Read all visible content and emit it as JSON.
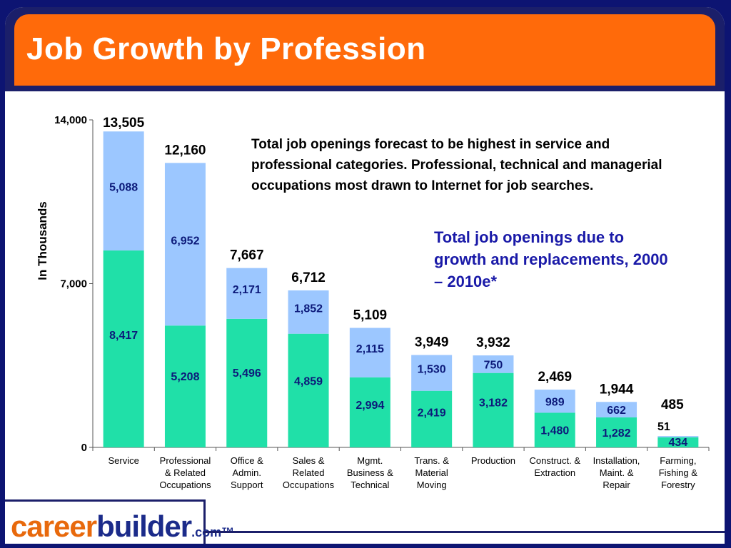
{
  "title": "Job Growth by Profession",
  "caption": "Total job openings forecast to be highest in service and professional categories. Professional, technical and managerial occupations most drawn to Internet for job searches.",
  "subcaption": "Total job openings due to growth and replacements, 2000 – 2010e*",
  "logo": {
    "part1": "career",
    "part2": "builder",
    "part3": ".com™"
  },
  "colors": {
    "header": "#ff6a0a",
    "frame": "#1b1f6a",
    "base_series": "#20e0a8",
    "top_series": "#9cc7ff",
    "subcaption": "#1a1aa8"
  },
  "chart_data": {
    "type": "bar",
    "stacked": true,
    "ylabel": "In Thousands",
    "ylim": [
      0,
      14000
    ],
    "yticks": [
      "0",
      "7,000",
      "14,000"
    ],
    "yticks_values": [
      0,
      7000,
      14000
    ],
    "categories": [
      [
        "Service"
      ],
      [
        "Professional",
        "& Related",
        "Occupations"
      ],
      [
        "Office &",
        "Admin.",
        "Support"
      ],
      [
        "Sales &",
        "Related",
        "Occupations"
      ],
      [
        "Mgmt.",
        "Business &",
        "Technical"
      ],
      [
        "Trans. &",
        "Material",
        "Moving"
      ],
      [
        "Production"
      ],
      [
        "Construct. &",
        "Extraction"
      ],
      [
        "Installation,",
        "Maint. &",
        "Repair"
      ],
      [
        "Farming,",
        "Fishing &",
        "Forestry"
      ]
    ],
    "series": [
      {
        "values": [
          8417,
          5208,
          5496,
          4859,
          2994,
          2419,
          3182,
          1480,
          1282,
          434
        ],
        "labels": [
          "8,417",
          "5,208",
          "5,496",
          "4,859",
          "2,994",
          "2,419",
          "3,182",
          "1,480",
          "1,282",
          "434"
        ]
      },
      {
        "values": [
          5088,
          6952,
          2171,
          1852,
          2115,
          1530,
          750,
          989,
          662,
          51
        ],
        "labels": [
          "5,088",
          "6,952",
          "2,171",
          "1,852",
          "2,115",
          "1,530",
          "750",
          "989",
          "662",
          "51"
        ]
      }
    ],
    "totals": [
      13505,
      12160,
      7667,
      6712,
      5109,
      3949,
      3932,
      2469,
      1944,
      485
    ],
    "total_labels": [
      "13,505",
      "12,160",
      "7,667",
      "6,712",
      "5,109",
      "3,949",
      "3,932",
      "2,469",
      "1,944",
      "485"
    ],
    "grid": false,
    "legend": "none"
  }
}
